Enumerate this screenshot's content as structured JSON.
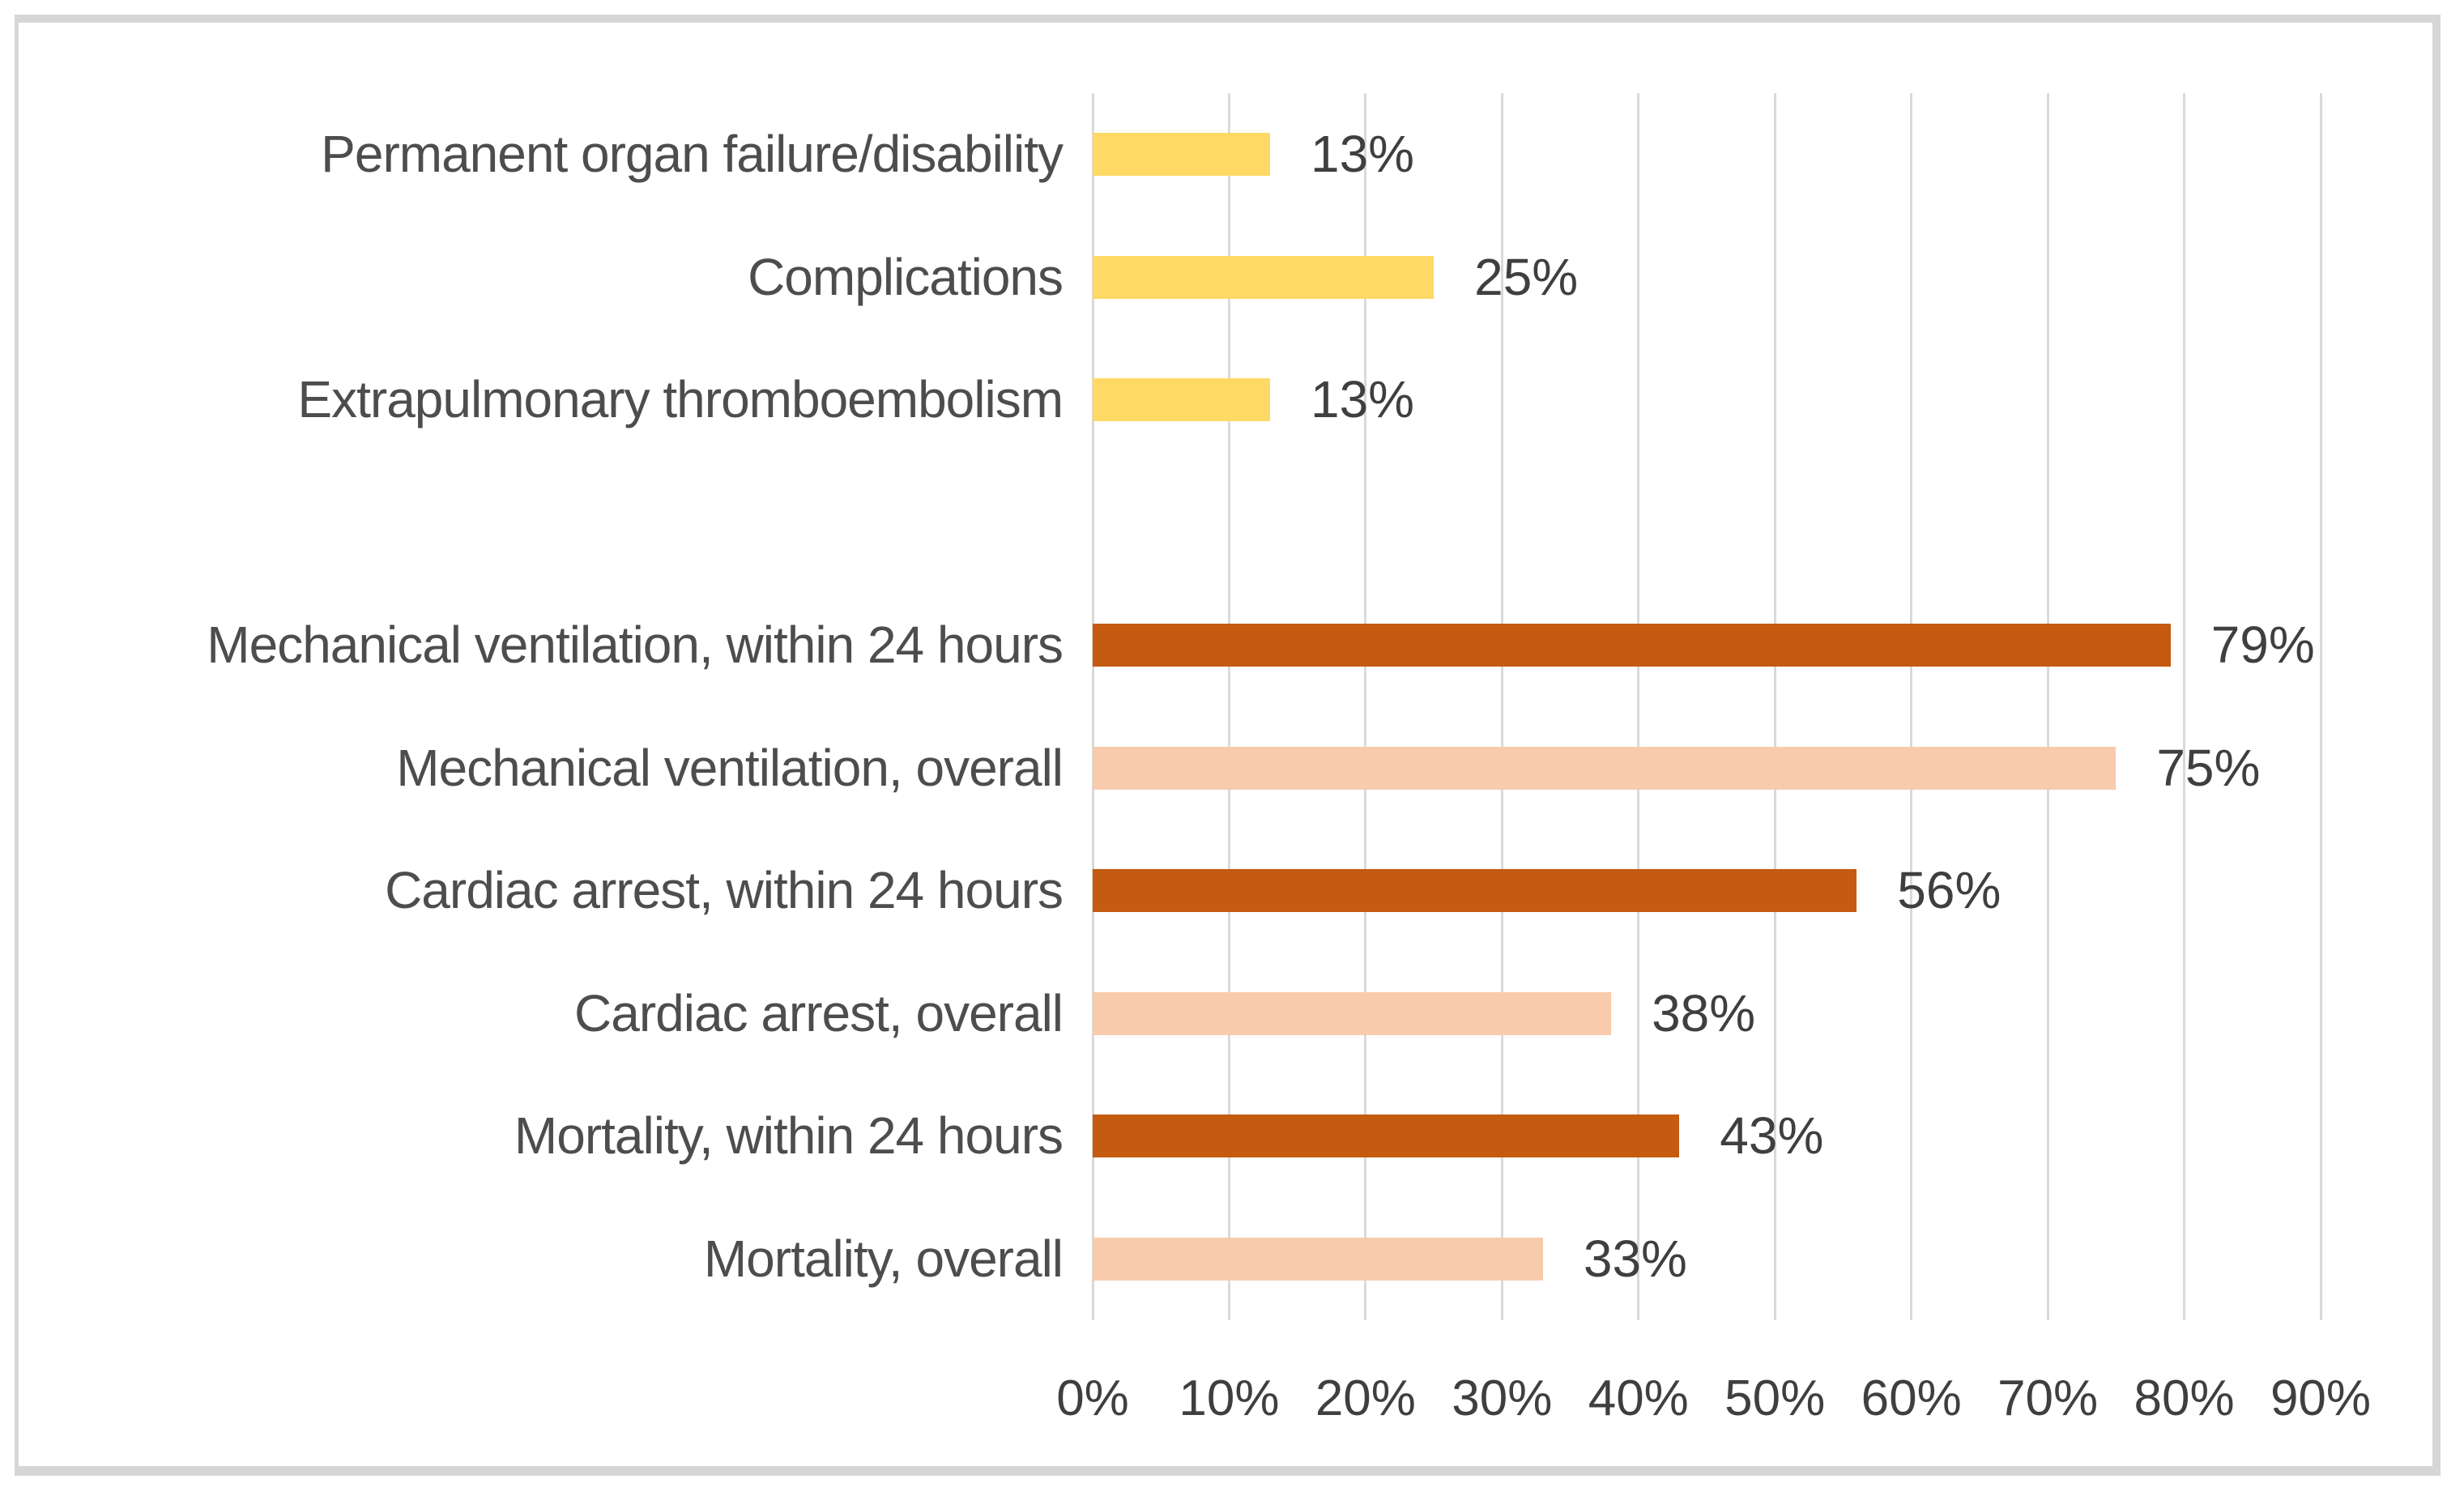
{
  "chart_data": {
    "type": "bar",
    "orientation": "horizontal",
    "title": "",
    "xlabel": "",
    "ylabel": "",
    "xlim": [
      0,
      90
    ],
    "x_ticks": [
      "0%",
      "10%",
      "20%",
      "30%",
      "40%",
      "50%",
      "60%",
      "70%",
      "80%",
      "90%"
    ],
    "grid": true,
    "legend": null,
    "data_labels": true,
    "value_suffix": "%",
    "bars": [
      {
        "category": "Permanent organ failure/disability",
        "value": 13,
        "label": "13%",
        "color_key": "yellow"
      },
      {
        "category": "Complications",
        "value": 25,
        "label": "25%",
        "color_key": "yellow"
      },
      {
        "category": "Extrapulmonary thromboembolism",
        "value": 13,
        "label": "13%",
        "color_key": "yellow"
      },
      {
        "category": "",
        "value": null,
        "label": "",
        "color_key": null
      },
      {
        "category": "Mechanical ventilation, within 24 hours",
        "value": 79,
        "label": "79%",
        "color_key": "dark_orange"
      },
      {
        "category": "Mechanical ventilation, overall",
        "value": 75,
        "label": "75%",
        "color_key": "light_orange"
      },
      {
        "category": "Cardiac arrest, within 24 hours",
        "value": 56,
        "label": "56%",
        "color_key": "dark_orange"
      },
      {
        "category": "Cardiac arrest, overall",
        "value": 38,
        "label": "38%",
        "color_key": "light_orange"
      },
      {
        "category": "Mortality, within 24 hours",
        "value": 43,
        "label": "43%",
        "color_key": "dark_orange"
      },
      {
        "category": "Mortality, overall",
        "value": 33,
        "label": "33%",
        "color_key": "light_orange"
      }
    ],
    "colors": {
      "yellow": "#FFD966",
      "dark_orange": "#C55A11",
      "light_orange": "#F8CBAD",
      "gridline": "#D9D9D9",
      "category_text": "#4D4D4D",
      "value_text": "#3F3F3F",
      "tick_text": "#3F3F3F",
      "frame_border": "#D6D6D6",
      "background": "#FFFFFF"
    }
  }
}
